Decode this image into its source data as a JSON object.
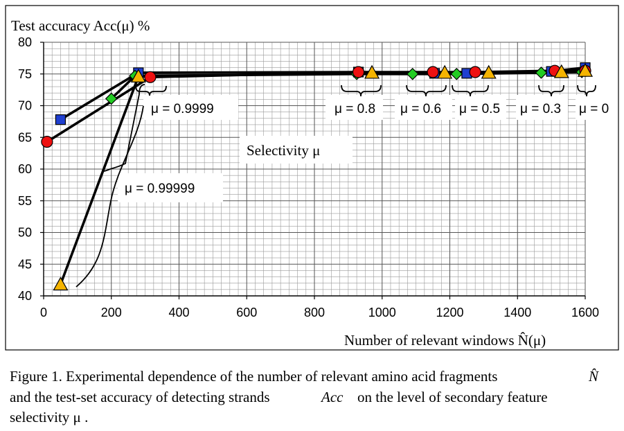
{
  "chart_data": {
    "type": "scatter",
    "ylabel": "Test accuracy Acc(μ) %",
    "xlabel": "Number of relevant windows N̂(μ)",
    "xlim": [
      0,
      1600
    ],
    "ylim": [
      40,
      80
    ],
    "x_ticks": [
      0,
      200,
      400,
      600,
      800,
      1000,
      1200,
      1400,
      1600
    ],
    "y_ticks": [
      40,
      45,
      50,
      55,
      60,
      65,
      70,
      75,
      80
    ],
    "grid": true,
    "series": [
      {
        "marker": "square",
        "color": "#1f3fd0",
        "points": [
          [
            50,
            67.8
          ],
          [
            280,
            75.2
          ],
          [
            930,
            75.3
          ],
          [
            1155,
            75.1
          ],
          [
            1250,
            75.1
          ],
          [
            1500,
            75.4
          ],
          [
            1600,
            76.0
          ]
        ]
      },
      {
        "marker": "diamond",
        "color": "#22cc22",
        "points": [
          [
            200,
            71.1
          ],
          [
            270,
            74.7
          ],
          [
            925,
            75.0
          ],
          [
            1090,
            75.0
          ],
          [
            1220,
            75.0
          ],
          [
            1470,
            75.2
          ],
          [
            1590,
            75.3
          ]
        ]
      },
      {
        "marker": "circle",
        "color": "#ee1111",
        "points": [
          [
            10,
            64.3
          ],
          [
            315,
            74.5
          ],
          [
            930,
            75.3
          ],
          [
            1150,
            75.3
          ],
          [
            1275,
            75.3
          ],
          [
            1510,
            75.5
          ],
          [
            1600,
            75.5
          ]
        ]
      },
      {
        "marker": "triangle",
        "color": "#f5b400",
        "points": [
          [
            50,
            41.8
          ],
          [
            280,
            74.6
          ],
          [
            970,
            75.2
          ],
          [
            1185,
            75.2
          ],
          [
            1315,
            75.2
          ],
          [
            1530,
            75.3
          ],
          [
            1600,
            75.5
          ]
        ]
      }
    ],
    "annotations": [
      {
        "label": "μ = 0.9999"
      },
      {
        "label": "μ = 0.99999"
      },
      {
        "label": "μ = 0.8"
      },
      {
        "label": "μ = 0.6"
      },
      {
        "label": "μ = 0.5"
      },
      {
        "label": "μ = 0.3"
      },
      {
        "label": "μ = 0"
      },
      {
        "label": "Selectivity  μ"
      }
    ]
  },
  "caption": {
    "line1": "Figure 1. Experimental dependence of the number of relevant amino acid fragments",
    "line1_symbol": "N̂",
    "line2_a": "and the test-set accuracy of detecting strands",
    "line2_symbol": "Acc",
    "line2_b": "on the level of secondary feature",
    "line3": "selectivity  μ ."
  }
}
